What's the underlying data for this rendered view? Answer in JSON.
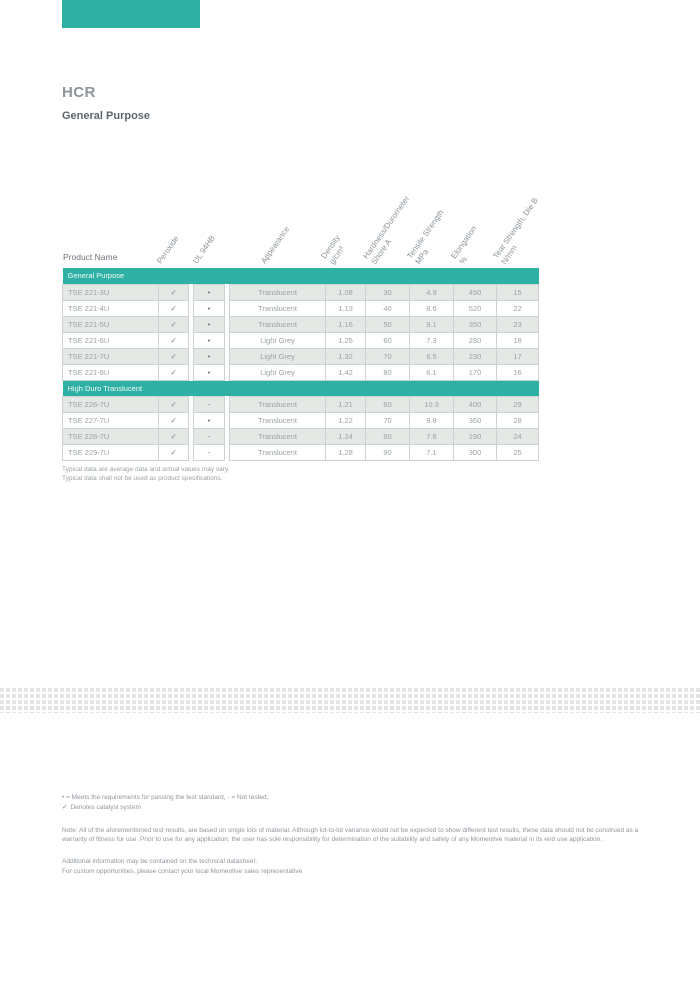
{
  "header": {
    "title": "HCR",
    "subtitle": "General Purpose"
  },
  "table": {
    "product_name_header": "Product Name",
    "columns": [
      {
        "label": "Peroxide",
        "sub": ""
      },
      {
        "label": "UL 94HB",
        "sub": ""
      },
      {
        "label": "Appearance",
        "sub": ""
      },
      {
        "label": "Density",
        "sub": "g/cm³"
      },
      {
        "label": "Hardness/Durometer",
        "sub": "Shore A"
      },
      {
        "label": "Tensile Strength",
        "sub": "MPa"
      },
      {
        "label": "Elongation",
        "sub": "%"
      },
      {
        "label": "Tear Strength, Die B",
        "sub": "N/mm"
      }
    ],
    "sections": [
      {
        "name": "General Purpose",
        "rows": [
          {
            "product": "TSE 221-3U",
            "peroxide": "✓",
            "ul": "•",
            "appearance": "Translucent",
            "density": "1.08",
            "hardness": "30",
            "tensile": "4.9",
            "elongation": "450",
            "tear": "15"
          },
          {
            "product": "TSE 221-4U",
            "peroxide": "✓",
            "ul": "•",
            "appearance": "Translucent",
            "density": "1.13",
            "hardness": "40",
            "tensile": "8.6",
            "elongation": "520",
            "tear": "22"
          },
          {
            "product": "TSE 221-5U",
            "peroxide": "✓",
            "ul": "•",
            "appearance": "Translucent",
            "density": "1.16",
            "hardness": "50",
            "tensile": "9.1",
            "elongation": "350",
            "tear": "23"
          },
          {
            "product": "TSE 221-6U",
            "peroxide": "✓",
            "ul": "•",
            "appearance": "Light Grey",
            "density": "1.25",
            "hardness": "60",
            "tensile": "7.3",
            "elongation": "280",
            "tear": "18"
          },
          {
            "product": "TSE 221-7U",
            "peroxide": "✓",
            "ul": "•",
            "appearance": "Light Grey",
            "density": "1.32",
            "hardness": "70",
            "tensile": "6.5",
            "elongation": "230",
            "tear": "17"
          },
          {
            "product": "TSE 221-8U",
            "peroxide": "✓",
            "ul": "•",
            "appearance": "Light Grey",
            "density": "1.42",
            "hardness": "80",
            "tensile": "6.1",
            "elongation": "170",
            "tear": "16"
          }
        ]
      },
      {
        "name": "High Duro Translucent",
        "rows": [
          {
            "product": "TSE 226-7U",
            "peroxide": "✓",
            "ul": "-",
            "appearance": "Translucent",
            "density": "1.21",
            "hardness": "60",
            "tensile": "10.3",
            "elongation": "400",
            "tear": "29"
          },
          {
            "product": "TSE 227-7U",
            "peroxide": "✓",
            "ul": "•",
            "appearance": "Translucent",
            "density": "1.22",
            "hardness": "70",
            "tensile": "9.8",
            "elongation": "360",
            "tear": "28"
          },
          {
            "product": "TSE 228-7U",
            "peroxide": "✓",
            "ul": "-",
            "appearance": "Translucent",
            "density": "1.24",
            "hardness": "80",
            "tensile": "7.6",
            "elongation": "190",
            "tear": "24"
          },
          {
            "product": "TSE 229-7U",
            "peroxide": "✓",
            "ul": "-",
            "appearance": "Translucent",
            "density": "1.28",
            "hardness": "90",
            "tensile": "7.1",
            "elongation": "300",
            "tear": "25"
          }
        ]
      }
    ],
    "footnotes": [
      "Typical data are average data and actual values may vary.",
      "Typical data shall not be used as product specifications."
    ]
  },
  "legend": {
    "symbols_line": "• = Meets the requirements for passing the test standard, - = Not tested,",
    "check_symbol": "✓",
    "check_meaning": "Denotes catalyst system",
    "note": "Note: All of the aforementioned test results, are based on single lots of material.  Although lot-to-lot variance would not be expected to show different test results, these data should not be construed as a warranty of fitness for use.  Prior to use for any application, the user has sole responsibility for determination of the suitability and safety of any Momentive material in its end use application.",
    "additional_line1": "Additional information may be contained on the technical datasheet.",
    "additional_line2": "For custom opportunities, please contact your local Momentive sales representative"
  },
  "colors": {
    "accent_teal": "#2eb0a4",
    "row_alternate": "#e4e9e6",
    "table_border": "#ccd3d0",
    "body_text_grey": "#9aa2a7"
  }
}
